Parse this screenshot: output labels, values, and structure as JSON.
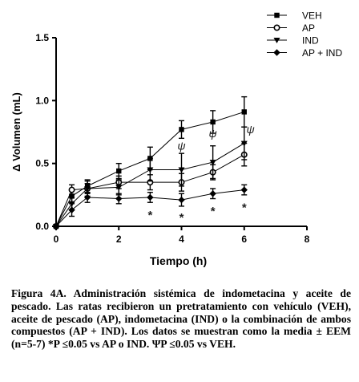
{
  "chart_data": {
    "type": "line",
    "xlabel": "Tiempo (h)",
    "ylabel": "Δ Volumen (mL)",
    "xlim": [
      0,
      8
    ],
    "ylim": [
      0,
      1.5
    ],
    "xticks": [
      "0",
      "2",
      "4",
      "6",
      "8"
    ],
    "yticks": [
      "0.0",
      "0.5",
      "1.0",
      "1.5"
    ],
    "grid": false,
    "legend_position": "top-right",
    "x": [
      0,
      0.5,
      1,
      2,
      3,
      4,
      5,
      6
    ],
    "series": [
      {
        "name": "VEH",
        "marker": "square-filled",
        "values": [
          0,
          0.24,
          0.32,
          0.44,
          0.54,
          0.77,
          0.83,
          0.91
        ],
        "errors": [
          0,
          0.05,
          0.05,
          0.06,
          0.09,
          0.07,
          0.09,
          0.12
        ]
      },
      {
        "name": "AP",
        "marker": "circle-open",
        "values": [
          0,
          0.29,
          0.3,
          0.35,
          0.35,
          0.35,
          0.43,
          0.57
        ],
        "errors": [
          0,
          0.04,
          0.04,
          0.05,
          0.06,
          0.07,
          0.06,
          0.09
        ]
      },
      {
        "name": "IND",
        "marker": "triangle-down-filled",
        "values": [
          0,
          0.18,
          0.3,
          0.31,
          0.45,
          0.45,
          0.51,
          0.66
        ],
        "errors": [
          0,
          0.05,
          0.06,
          0.06,
          0.09,
          0.13,
          0.13,
          0.13
        ]
      },
      {
        "name": "AP + IND",
        "marker": "diamond-filled",
        "values": [
          0,
          0.13,
          0.23,
          0.22,
          0.23,
          0.21,
          0.26,
          0.29
        ],
        "errors": [
          0,
          0.05,
          0.04,
          0.04,
          0.04,
          0.05,
          0.04,
          0.04
        ]
      }
    ],
    "annotations": [
      {
        "text": "ψ",
        "x": 4,
        "y": 0.61
      },
      {
        "text": "ψ",
        "x": 5,
        "y": 0.71
      },
      {
        "text": "ψ",
        "x": 6.2,
        "y": 0.74
      },
      {
        "text": "*",
        "x": 3,
        "y": 0.11
      },
      {
        "text": "*",
        "x": 4,
        "y": 0.09
      },
      {
        "text": "*",
        "x": 5,
        "y": 0.14
      },
      {
        "text": "*",
        "x": 6,
        "y": 0.17
      }
    ]
  },
  "caption": {
    "text": "Figura 4A. Administración sistémica de indometacina y aceite de pescado. Las ratas recibieron un pretratamiento con vehículo (VEH), aceite de pescado (AP), indometacina (IND) o la combinación de ambos compuestos (AP + IND). Los datos se muestran como la media ± EEM (n=5-7) *P ≤0.05 vs AP o IND. ΨP ≤0.05 vs VEH."
  }
}
